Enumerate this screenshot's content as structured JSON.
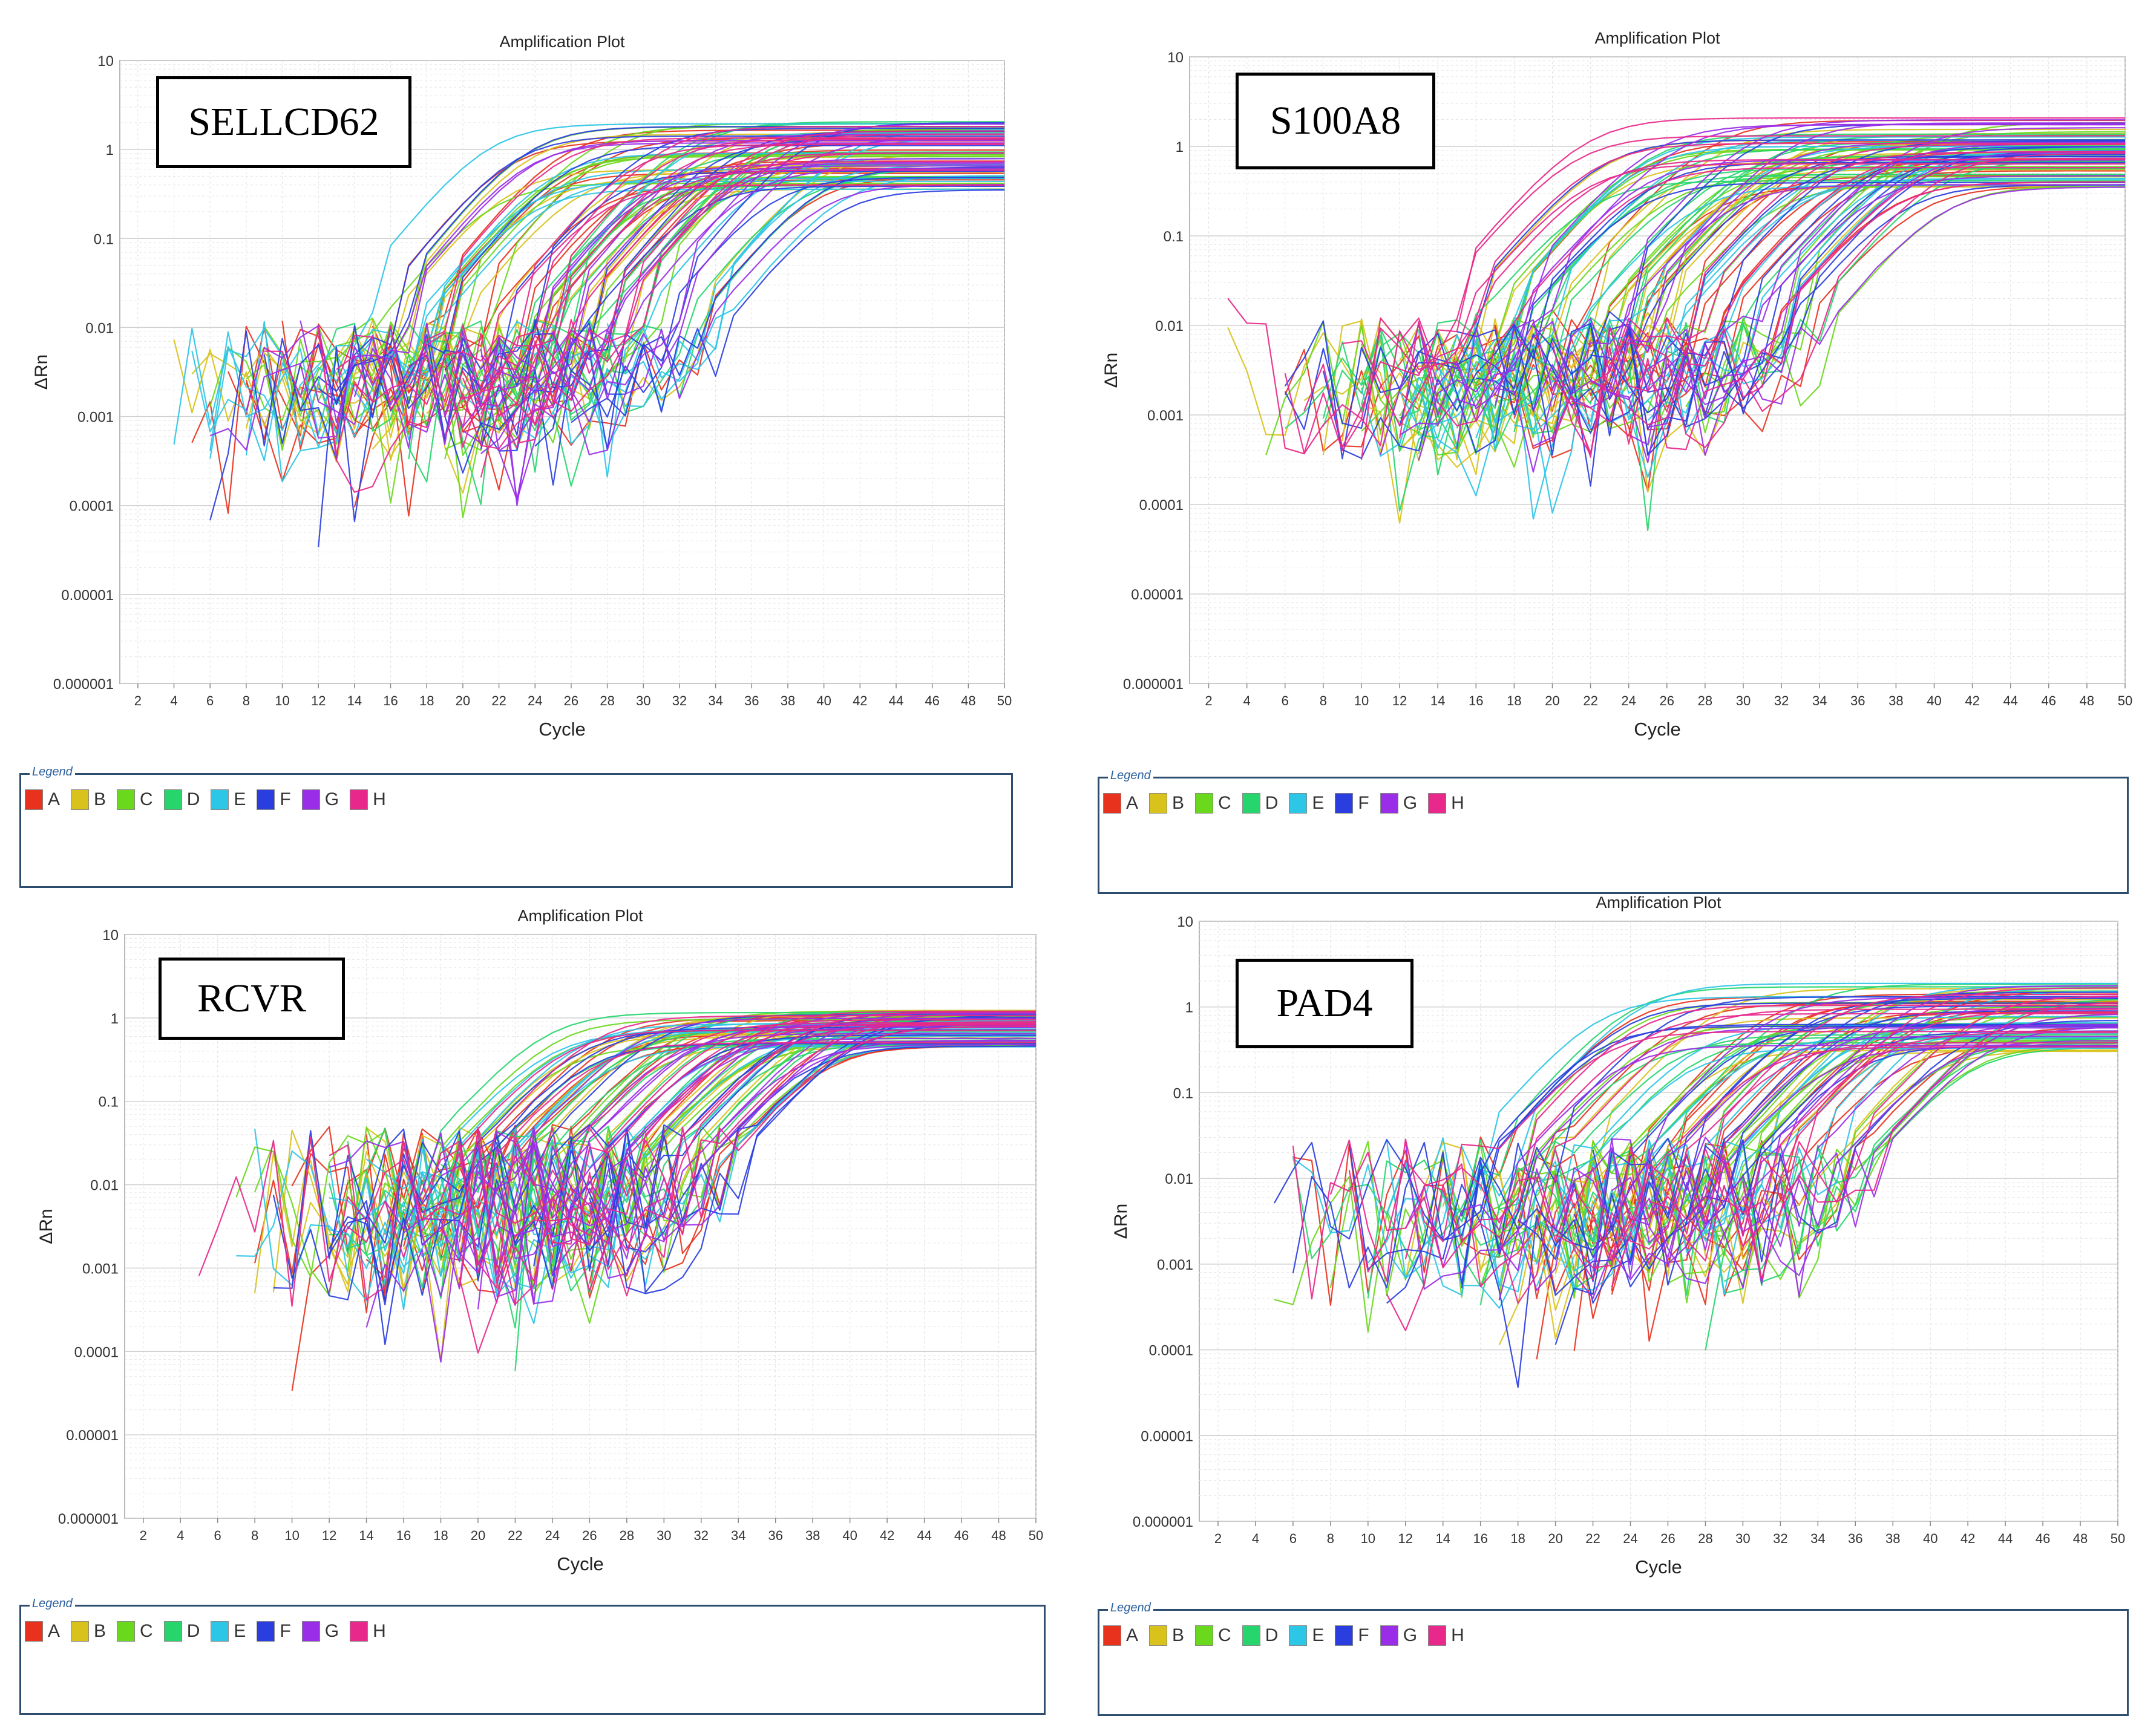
{
  "legend": {
    "title": "Legend",
    "items": [
      {
        "label": "A",
        "color": "#e8321e"
      },
      {
        "label": "B",
        "color": "#d9c21c"
      },
      {
        "label": "C",
        "color": "#6ad81c"
      },
      {
        "label": "D",
        "color": "#26d66c"
      },
      {
        "label": "E",
        "color": "#2cc6e6"
      },
      {
        "label": "F",
        "color": "#2a3ee0"
      },
      {
        "label": "G",
        "color": "#9a2ee8"
      },
      {
        "label": "H",
        "color": "#e8288a"
      }
    ]
  },
  "chart_data": [
    {
      "type": "line",
      "gene": "SELLCD62",
      "title": "Amplification Plot",
      "xlabel": "Cycle",
      "ylabel": "ΔRn",
      "yscale": "log",
      "xlim": [
        1,
        50
      ],
      "ylim": [
        1e-06,
        10
      ],
      "x_ticks": [
        "2",
        "4",
        "6",
        "8",
        "10",
        "12",
        "14",
        "16",
        "18",
        "20",
        "22",
        "24",
        "26",
        "28",
        "30",
        "32",
        "34",
        "36",
        "38",
        "40",
        "42",
        "44",
        "46",
        "48",
        "50"
      ],
      "y_ticks": [
        "0.000001",
        "0.00001",
        "0.0001",
        "0.001",
        "0.01",
        "0.1",
        "1",
        "10"
      ],
      "series_groups": [
        "A",
        "B",
        "C",
        "D",
        "E",
        "F",
        "G",
        "H"
      ],
      "curves_per_group": 12,
      "ct_range": [
        17,
        37
      ],
      "plateau_range": [
        0.35,
        2.1
      ],
      "baseline_range": [
        0.0003,
        0.012
      ]
    },
    {
      "type": "line",
      "gene": "S100A8",
      "title": "Amplification Plot",
      "xlabel": "Cycle",
      "ylabel": "ΔRn",
      "yscale": "log",
      "xlim": [
        1,
        50
      ],
      "ylim": [
        1e-06,
        10
      ],
      "x_ticks": [
        "2",
        "4",
        "6",
        "8",
        "10",
        "12",
        "14",
        "16",
        "18",
        "20",
        "22",
        "24",
        "26",
        "28",
        "30",
        "32",
        "34",
        "36",
        "38",
        "40",
        "42",
        "44",
        "46",
        "48",
        "50"
      ],
      "y_ticks": [
        "0.000001",
        "0.00001",
        "0.0001",
        "0.001",
        "0.01",
        "0.1",
        "1",
        "10"
      ],
      "series_groups": [
        "A",
        "B",
        "C",
        "D",
        "E",
        "F",
        "G",
        "H"
      ],
      "curves_per_group": 12,
      "ct_range": [
        17,
        37
      ],
      "plateau_range": [
        0.35,
        2.1
      ],
      "baseline_range": [
        0.0003,
        0.012
      ]
    },
    {
      "type": "line",
      "gene": "RCVR",
      "title": "Amplification Plot",
      "xlabel": "Cycle",
      "ylabel": "ΔRn",
      "yscale": "log",
      "xlim": [
        1,
        50
      ],
      "ylim": [
        1e-06,
        10
      ],
      "x_ticks": [
        "2",
        "4",
        "6",
        "8",
        "10",
        "12",
        "14",
        "16",
        "18",
        "20",
        "22",
        "24",
        "26",
        "28",
        "30",
        "32",
        "34",
        "36",
        "38",
        "40",
        "42",
        "44",
        "46",
        "48",
        "50"
      ],
      "y_ticks": [
        "0.000001",
        "0.00001",
        "0.0001",
        "0.001",
        "0.01",
        "0.1",
        "1",
        "10"
      ],
      "series_groups": [
        "A",
        "B",
        "C",
        "D",
        "E",
        "F",
        "G",
        "H"
      ],
      "curves_per_group": 12,
      "ct_range": [
        19,
        37
      ],
      "plateau_range": [
        0.45,
        1.25
      ],
      "baseline_range": [
        0.0003,
        0.05
      ]
    },
    {
      "type": "line",
      "gene": "PAD4",
      "title": "Amplification Plot",
      "xlabel": "Cycle",
      "ylabel": "ΔRn",
      "yscale": "log",
      "xlim": [
        1,
        50
      ],
      "ylim": [
        1e-06,
        10
      ],
      "x_ticks": [
        "2",
        "4",
        "6",
        "8",
        "10",
        "12",
        "14",
        "16",
        "18",
        "20",
        "22",
        "24",
        "26",
        "28",
        "30",
        "32",
        "34",
        "36",
        "38",
        "40",
        "42",
        "44",
        "46",
        "48",
        "50"
      ],
      "y_ticks": [
        "0.000001",
        "0.00001",
        "0.0001",
        "0.001",
        "0.01",
        "0.1",
        "1",
        "10"
      ],
      "series_groups": [
        "A",
        "B",
        "C",
        "D",
        "E",
        "F",
        "G",
        "H"
      ],
      "curves_per_group": 12,
      "ct_range": [
        18,
        40
      ],
      "plateau_range": [
        0.3,
        1.9
      ],
      "baseline_range": [
        0.0003,
        0.03
      ]
    }
  ]
}
